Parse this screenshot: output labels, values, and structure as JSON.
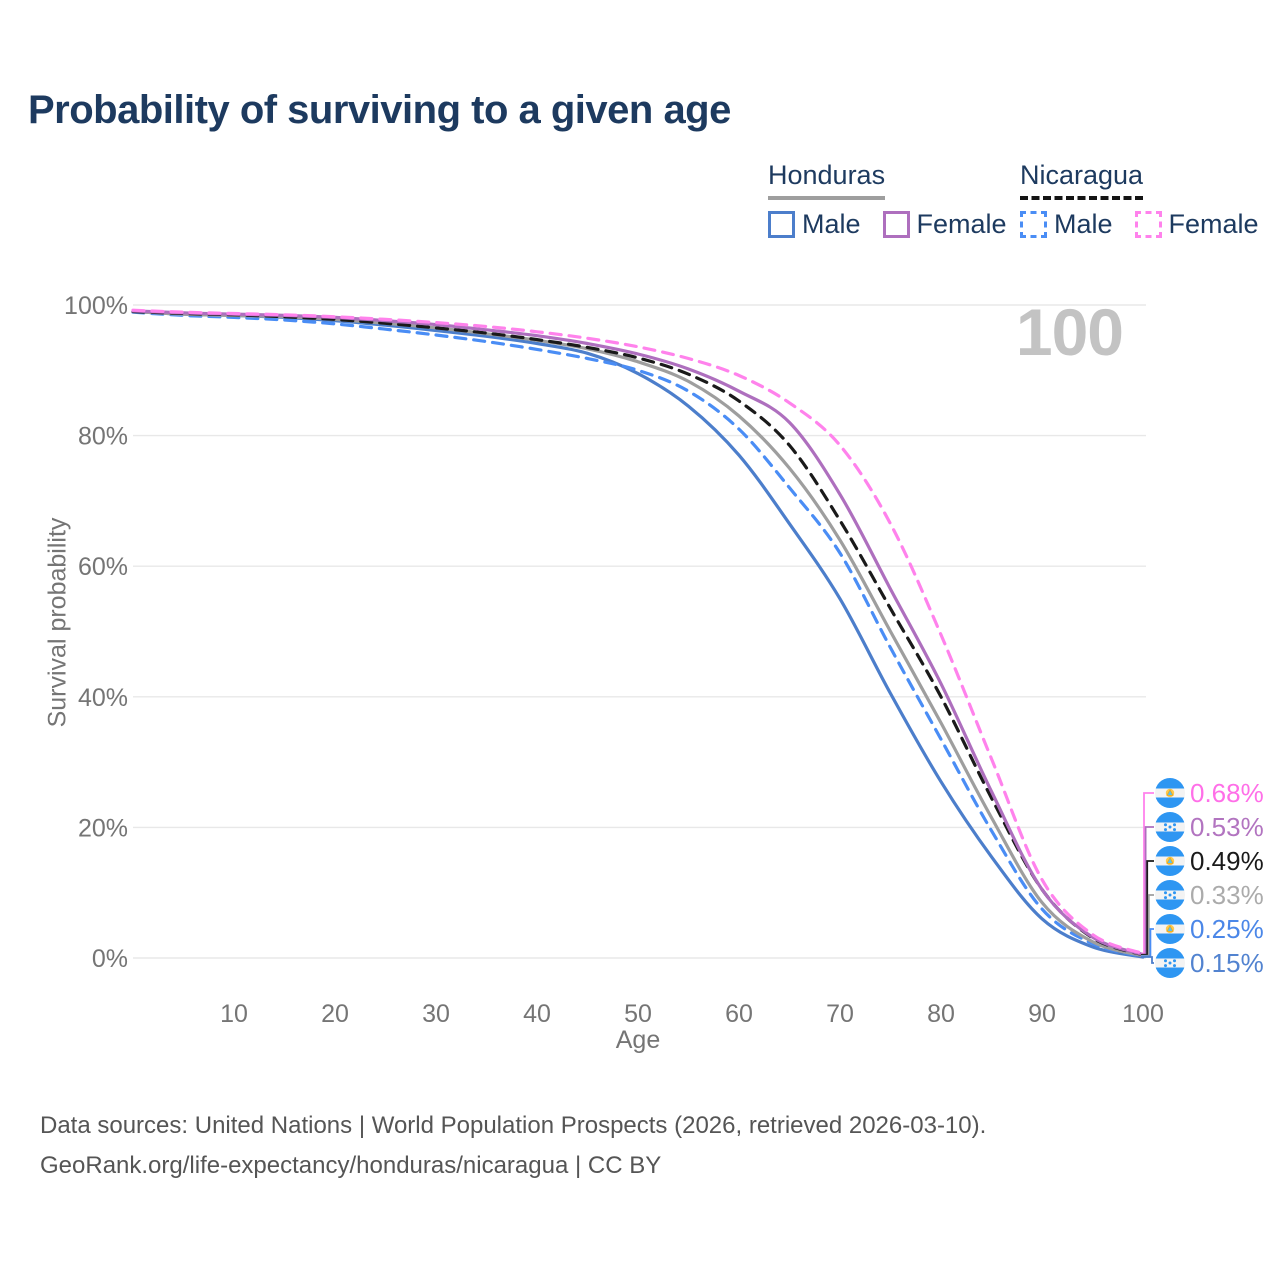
{
  "title": "Probability of surviving to a given age",
  "watermark": "100",
  "legend": {
    "groups": [
      {
        "country": "Honduras",
        "line_style": "solid",
        "underline_color": "#9e9e9e",
        "items": [
          {
            "label": "Male",
            "color": "#4C7ECB",
            "dashed": false
          },
          {
            "label": "Female",
            "color": "#B783C4",
            "dashed": false
          }
        ]
      },
      {
        "country": "Nicaragua",
        "line_style": "dashed",
        "underline_color": "#141414",
        "items": [
          {
            "label": "Male",
            "color": "#4A8DF5",
            "dashed": true
          },
          {
            "label": "Female",
            "color": "#FF82EC",
            "dashed": true
          }
        ]
      }
    ]
  },
  "chart_data": {
    "type": "line",
    "title": "Probability of surviving to a given age",
    "xlabel": "Age",
    "ylabel": "Survival probability",
    "xlim": [
      0,
      100
    ],
    "ylim": [
      0,
      100
    ],
    "grid": "horizontal",
    "legend_position": "top-right",
    "x_ticks": [
      10,
      20,
      30,
      40,
      50,
      60,
      70,
      80,
      90,
      100
    ],
    "y_ticks": [
      0,
      20,
      40,
      60,
      80,
      100
    ],
    "y_tick_labels": [
      "0%",
      "20%",
      "40%",
      "60%",
      "80%",
      "100%"
    ],
    "x": [
      0,
      5,
      10,
      15,
      20,
      25,
      30,
      35,
      40,
      45,
      50,
      55,
      60,
      65,
      70,
      75,
      80,
      85,
      90,
      95,
      100
    ],
    "series": [
      {
        "id": "honduras_male",
        "name": "Honduras Male",
        "country": "Honduras",
        "sex": "Male",
        "color": "#4C7ECB",
        "dashed": false,
        "values": [
          99.0,
          98.6,
          98.4,
          98.1,
          97.6,
          96.9,
          96.1,
          95.2,
          94.1,
          92.6,
          89.5,
          84.5,
          77.0,
          66.5,
          55.0,
          40.5,
          27.0,
          15.5,
          6.0,
          1.7,
          0.15
        ]
      },
      {
        "id": "nicaragua_male",
        "name": "Nicaragua Male",
        "country": "Nicaragua",
        "sex": "Male",
        "color": "#4A8DF5",
        "dashed": true,
        "values": [
          98.9,
          98.4,
          98.1,
          97.7,
          97.1,
          96.3,
          95.4,
          94.4,
          93.2,
          91.8,
          90.0,
          86.8,
          81.0,
          72.0,
          62.0,
          47.5,
          33.5,
          19.5,
          7.5,
          2.2,
          0.25
        ]
      },
      {
        "id": "honduras_total",
        "name": "Honduras Both sexes",
        "country": "Honduras",
        "sex": "Both",
        "color": "#9E9E9E",
        "dashed": false,
        "values": [
          99.0,
          98.6,
          98.4,
          98.2,
          97.8,
          97.2,
          96.5,
          95.6,
          94.6,
          93.3,
          91.3,
          88.3,
          83.0,
          75.0,
          64.0,
          50.0,
          36.0,
          21.5,
          8.5,
          2.5,
          0.33
        ]
      },
      {
        "id": "nicaragua_total",
        "name": "Nicaragua Both sexes",
        "country": "Nicaragua",
        "sex": "Both",
        "color": "#1A1A1A",
        "dashed": true,
        "values": [
          99.0,
          98.7,
          98.5,
          98.2,
          97.8,
          97.2,
          96.5,
          95.7,
          94.7,
          93.5,
          91.9,
          89.4,
          85.3,
          78.5,
          67.0,
          53.5,
          40.0,
          24.5,
          10.5,
          3.1,
          0.49
        ]
      },
      {
        "id": "honduras_female",
        "name": "Honduras Female",
        "country": "Honduras",
        "sex": "Female",
        "color": "#AE6FBE",
        "dashed": false,
        "values": [
          99.1,
          98.8,
          98.6,
          98.4,
          98.1,
          97.6,
          97.0,
          96.2,
          95.3,
          94.1,
          92.5,
          90.2,
          86.8,
          82.0,
          71.0,
          56.5,
          42.0,
          25.5,
          10.5,
          3.2,
          0.53
        ]
      },
      {
        "id": "nicaragua_female",
        "name": "Nicaragua Female",
        "country": "Nicaragua",
        "sex": "Female",
        "color": "#FF82EC",
        "dashed": true,
        "values": [
          99.2,
          98.9,
          98.7,
          98.5,
          98.2,
          97.8,
          97.3,
          96.7,
          95.9,
          94.9,
          93.6,
          91.8,
          89.2,
          85.0,
          78.5,
          66.5,
          49.5,
          30.5,
          12.0,
          3.6,
          0.68
        ]
      }
    ],
    "end_labels": [
      {
        "value": "0.68%",
        "series_id": "nicaragua_female",
        "flag": "nicaragua",
        "text_color": "#FF6FE8"
      },
      {
        "value": "0.53%",
        "series_id": "honduras_female",
        "flag": "honduras",
        "text_color": "#B274C0"
      },
      {
        "value": "0.49%",
        "series_id": "nicaragua_total",
        "flag": "nicaragua",
        "text_color": "#1A1A1A"
      },
      {
        "value": "0.33%",
        "series_id": "honduras_total",
        "flag": "honduras",
        "text_color": "#ABABAB"
      },
      {
        "value": "0.25%",
        "series_id": "nicaragua_male",
        "flag": "nicaragua",
        "text_color": "#4B87E8"
      },
      {
        "value": "0.15%",
        "series_id": "honduras_male",
        "flag": "honduras",
        "text_color": "#5283D0"
      }
    ]
  },
  "colors": {
    "title": "#1d3a5f",
    "axis_text": "#757575",
    "gridline": "#e8e8e8",
    "watermark": "#c3c3c3",
    "footer": "#555555",
    "flag_blue": "#2E96F2"
  },
  "footer": {
    "line1": "Data sources: United Nations | World Population Prospects (2026, retrieved 2026-03-10).",
    "line2": "GeoRank.org/life-expectancy/honduras/nicaragua | CC BY"
  }
}
